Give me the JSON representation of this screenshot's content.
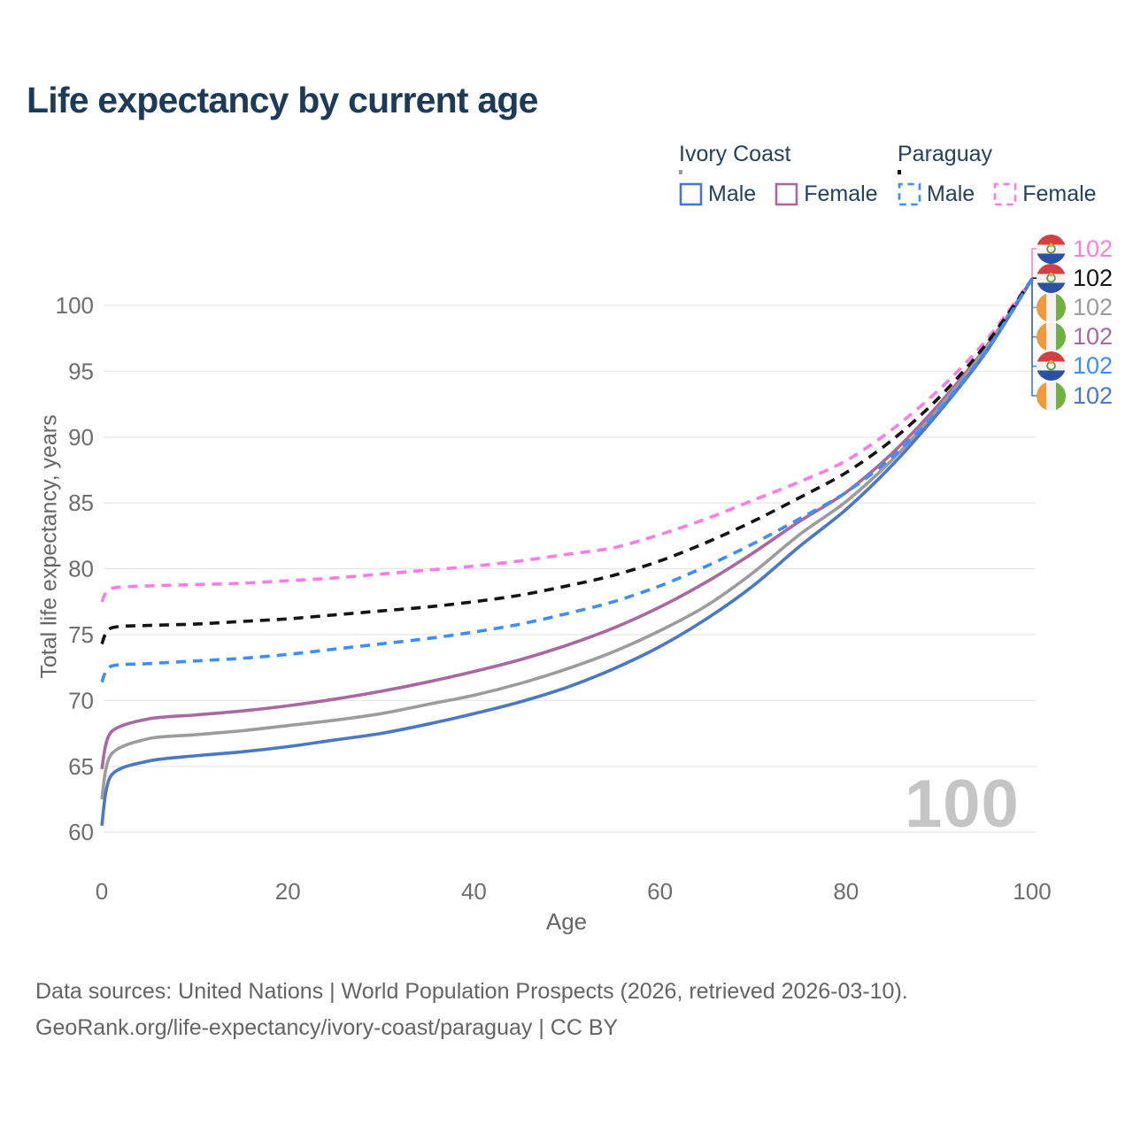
{
  "title": "Life expectancy by current age",
  "watermark": {
    "text": "100"
  },
  "legend": {
    "groups": [
      {
        "id": "ivory-coast",
        "name": "Ivory Coast",
        "line_style": "solid",
        "underline_color": "#9A9A9A",
        "items": [
          {
            "label": "Male",
            "color": "#4B78C4",
            "dashed": false
          },
          {
            "label": "Female",
            "color": "#A869A0",
            "dashed": false
          }
        ]
      },
      {
        "id": "paraguay",
        "name": "Paraguay",
        "line_style": "dashed",
        "underline_color": "#141414",
        "items": [
          {
            "label": "Male",
            "color": "#3E8EF7",
            "dashed": true
          },
          {
            "label": "Female",
            "color": "#FC7CE3",
            "dashed": true
          }
        ]
      }
    ]
  },
  "chart_data": {
    "type": "line",
    "title": "Life expectancy by current age",
    "xlabel": "Age",
    "ylabel": "Total life expectancy, years",
    "xlim": [
      0,
      100
    ],
    "ylim": [
      58,
      104
    ],
    "xticks": [
      0,
      20,
      40,
      60,
      80,
      100
    ],
    "yticks": [
      60,
      65,
      70,
      75,
      80,
      85,
      90,
      95,
      100
    ],
    "grid": "horizontal",
    "legend_position": "top-right",
    "x": [
      0,
      1,
      5,
      10,
      15,
      20,
      25,
      30,
      35,
      40,
      45,
      50,
      55,
      60,
      65,
      70,
      75,
      80,
      85,
      90,
      95,
      100
    ],
    "series": [
      {
        "id": "ci-female",
        "name": "Ivory Coast Female",
        "country": "Ivory Coast",
        "sex": "Female",
        "color": "#A869A0",
        "dashed": false,
        "values": [
          64.8,
          67.6,
          68.6,
          68.9,
          69.2,
          69.6,
          70.1,
          70.7,
          71.4,
          72.2,
          73.1,
          74.2,
          75.5,
          77.1,
          79.0,
          81.2,
          83.6,
          85.8,
          88.8,
          92.5,
          96.8,
          102
        ]
      },
      {
        "id": "ci-all",
        "name": "Ivory Coast",
        "country": "Ivory Coast",
        "sex": "Both",
        "color": "#9C9C9C",
        "dashed": false,
        "values": [
          62.5,
          65.9,
          67.1,
          67.4,
          67.7,
          68.1,
          68.5,
          69.0,
          69.7,
          70.4,
          71.3,
          72.4,
          73.7,
          75.3,
          77.2,
          79.7,
          82.6,
          85.1,
          88.3,
          92.2,
          96.7,
          102
        ]
      },
      {
        "id": "ci-male",
        "name": "Ivory Coast Male",
        "country": "Ivory Coast",
        "sex": "Male",
        "color": "#4B78C4",
        "dashed": false,
        "values": [
          60.5,
          64.3,
          65.4,
          65.8,
          66.1,
          66.5,
          67.0,
          67.5,
          68.2,
          69.0,
          69.9,
          71.0,
          72.4,
          74.1,
          76.2,
          78.7,
          81.7,
          84.5,
          87.9,
          91.9,
          96.4,
          102
        ]
      },
      {
        "id": "py-female",
        "name": "Paraguay Female",
        "country": "Paraguay",
        "sex": "Female",
        "color": "#FC7CE3",
        "dashed": true,
        "values": [
          77.5,
          78.5,
          78.7,
          78.8,
          78.9,
          79.1,
          79.3,
          79.6,
          79.9,
          80.2,
          80.6,
          81.1,
          81.6,
          82.6,
          83.8,
          85.2,
          86.6,
          88.2,
          90.6,
          93.6,
          97.3,
          102
        ]
      },
      {
        "id": "py-all",
        "name": "Paraguay",
        "country": "Paraguay",
        "sex": "Both",
        "color": "#141414",
        "dashed": true,
        "values": [
          74.3,
          75.5,
          75.7,
          75.8,
          76.0,
          76.2,
          76.5,
          76.8,
          77.1,
          77.5,
          78.0,
          78.7,
          79.5,
          80.6,
          82.0,
          83.6,
          85.4,
          87.3,
          89.8,
          93.0,
          97.0,
          102
        ]
      },
      {
        "id": "py-male",
        "name": "Paraguay Male",
        "country": "Paraguay",
        "sex": "Male",
        "color": "#3E8EF7",
        "dashed": true,
        "values": [
          71.4,
          72.6,
          72.8,
          73.0,
          73.2,
          73.5,
          73.9,
          74.3,
          74.7,
          75.2,
          75.8,
          76.6,
          77.5,
          78.7,
          80.2,
          81.9,
          83.8,
          85.8,
          88.5,
          92.1,
          96.5,
          102
        ]
      }
    ]
  },
  "end_labels": [
    {
      "flag": "paraguay",
      "series": "py-female",
      "text": "102",
      "color": "#FC7CE3"
    },
    {
      "flag": "paraguay",
      "series": "py-all",
      "text": "102",
      "color": "#141414"
    },
    {
      "flag": "ivory-coast",
      "series": "ci-all",
      "text": "102",
      "color": "#9C9C9C"
    },
    {
      "flag": "ivory-coast",
      "series": "ci-female",
      "text": "102",
      "color": "#A869A0"
    },
    {
      "flag": "paraguay",
      "series": "py-male",
      "text": "102",
      "color": "#3E8EF7"
    },
    {
      "flag": "ivory-coast",
      "series": "ci-male",
      "text": "102",
      "color": "#4B78C4"
    }
  ],
  "flags": {
    "paraguay": {
      "red": "#D63E44",
      "white": "#F2F2F2",
      "blue": "#2B50A4",
      "wreath": "#58A03C",
      "star": "#E8A33D"
    },
    "ivory_coast": {
      "orange": "#F09A3E",
      "white": "#F2F2F2",
      "green": "#71B044"
    }
  },
  "footer": {
    "line1": "Data sources: United Nations | World Population Prospects (2026, retrieved 2026-03-10).",
    "line2": "GeoRank.org/life-expectancy/ivory-coast/paraguay | CC BY"
  },
  "colors": {
    "background": "#FFFFFF",
    "title": "#1D3A57",
    "legend_text": "#25415C",
    "tick_text": "#6E6E6E",
    "axis_label": "#666666",
    "gridline": "#E8E8E8",
    "footer_text": "#646464",
    "watermark": "#C5C5C5"
  }
}
